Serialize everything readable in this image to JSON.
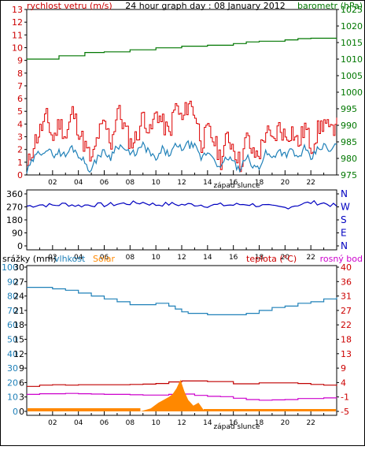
{
  "chart_data": [
    {
      "type": "line",
      "title": "24 hour graph day : 08 January 2012",
      "left_label": "rychlost vetru (m/s)",
      "right_label": "barometr (hPa)",
      "x_ticks": [
        "02",
        "04",
        "06",
        "08",
        "10",
        "12",
        "14",
        "16",
        "18",
        "20",
        "22"
      ],
      "x_annotation": "západ slunce",
      "y_left_ticks": [
        "0",
        "1",
        "2",
        "3",
        "4",
        "5",
        "6",
        "7",
        "8",
        "9",
        "10",
        "11",
        "12",
        "13"
      ],
      "ylim_left": [
        0,
        13
      ],
      "y_right_ticks": [
        "975",
        "980",
        "985",
        "990",
        "995",
        "1000",
        "1005",
        "1010",
        "1015",
        "1020",
        "1025"
      ],
      "ylim_right": [
        975,
        1025
      ],
      "grid": false,
      "colors": {
        "gust": "#dd0000",
        "wind": "#1f80b8",
        "pressure": "#007700",
        "text_red": "#cc0000",
        "text_green": "#007700"
      },
      "series": [
        {
          "name": "barometr",
          "role": "pressure",
          "x": [
            0,
            2,
            2.5,
            4,
            4.5,
            6,
            8,
            10,
            12,
            14,
            16,
            17,
            18,
            20,
            21,
            22,
            24
          ],
          "values": [
            1010,
            1010,
            1011,
            1011,
            1012,
            1012.2,
            1012.8,
            1013.4,
            1013.9,
            1014.2,
            1014.7,
            1015.2,
            1015.4,
            1015.8,
            1016.2,
            1016.3,
            1016.4
          ]
        },
        {
          "name": "náraz",
          "role": "gust",
          "x": [
            0,
            0.5,
            1,
            1.5,
            2,
            2.5,
            3,
            3.5,
            4,
            4.5,
            5,
            5.5,
            6,
            6.5,
            7,
            7.5,
            8,
            8.5,
            9,
            9.5,
            10,
            10.5,
            11,
            11.5,
            12,
            12.5,
            13,
            13.5,
            14,
            14.5,
            15,
            15.5,
            16,
            16.5,
            17,
            17.5,
            18,
            18.5,
            19,
            19.5,
            20,
            20.5,
            21,
            21.5,
            22,
            22.5,
            23,
            23.5,
            24
          ],
          "values": [
            0.5,
            2.5,
            3.5,
            4.5,
            2.8,
            4.2,
            3.0,
            5.0,
            3.5,
            2.2,
            1.0,
            3.2,
            4.0,
            2.5,
            5.2,
            3.8,
            2.5,
            3.0,
            4.8,
            3.2,
            5.0,
            4.0,
            3.2,
            5.5,
            4.2,
            5.8,
            4.8,
            2.5,
            3.5,
            2.6,
            1.2,
            3.0,
            2.2,
            0.8,
            3.0,
            1.5,
            1.8,
            3.5,
            2.5,
            3.8,
            3.0,
            3.5,
            2.4,
            3.8,
            2.2,
            3.5,
            4.2,
            3.2,
            4.5
          ]
        },
        {
          "name": "vítr",
          "role": "wind",
          "x": [
            0,
            0.5,
            1,
            1.5,
            2,
            2.5,
            3,
            3.5,
            4,
            4.5,
            5,
            5.5,
            6,
            6.5,
            7,
            7.5,
            8,
            8.5,
            9,
            9.5,
            10,
            10.5,
            11,
            11.5,
            12,
            12.5,
            13,
            13.5,
            14,
            14.5,
            15,
            15.5,
            16,
            16.5,
            17,
            17.5,
            18,
            18.5,
            19,
            19.5,
            20,
            20.5,
            21,
            21.5,
            22,
            22.5,
            23,
            23.5,
            24
          ],
          "values": [
            0.2,
            1.2,
            1.8,
            2.0,
            1.6,
            1.8,
            1.5,
            2.2,
            1.6,
            1.0,
            0.3,
            1.5,
            1.8,
            1.4,
            2.4,
            2.1,
            1.6,
            1.8,
            2.3,
            1.8,
            1.1,
            2.0,
            1.6,
            2.2,
            2.1,
            2.4,
            2.2,
            1.3,
            1.8,
            1.4,
            0.4,
            1.4,
            1.1,
            0.2,
            1.5,
            0.6,
            0.6,
            1.8,
            1.3,
            2.0,
            1.6,
            1.9,
            1.3,
            2.1,
            1.2,
            2.0,
            2.3,
            1.8,
            2.4
          ]
        }
      ]
    },
    {
      "type": "line",
      "title": "",
      "y_left_ticks": [
        "360",
        "270",
        "180",
        "90",
        "0"
      ],
      "ylim_left": [
        0,
        360
      ],
      "y_right_ticks": [
        "N",
        "W",
        "S",
        "E",
        "N"
      ],
      "x_ticks": [
        "02",
        "04",
        "06",
        "08",
        "10",
        "12",
        "14",
        "16",
        "18",
        "20",
        "22"
      ],
      "grid": false,
      "colors": {
        "direction": "#0000c0",
        "text": "#0000c0"
      },
      "series": [
        {
          "name": "směr větru",
          "x": [
            0,
            1,
            2,
            3,
            4,
            5,
            6,
            7,
            8,
            9,
            10,
            11,
            12,
            13,
            14,
            15,
            16,
            17,
            18,
            19,
            20,
            21,
            22,
            23,
            24
          ],
          "values": [
            275,
            285,
            280,
            290,
            278,
            285,
            283,
            290,
            295,
            300,
            285,
            290,
            285,
            287,
            280,
            283,
            283,
            290,
            280,
            270,
            265,
            285,
            300,
            295,
            275
          ]
        }
      ]
    },
    {
      "type": "line",
      "title": "",
      "labels_top": {
        "rain": "srážky (mm)",
        "humidity": "vlhkost",
        "solar": "Solar",
        "temp": "teplota (°C)",
        "dew": "rosný bod"
      },
      "x_ticks": [
        "02",
        "04",
        "06",
        "08",
        "10",
        "12",
        "14",
        "16",
        "18",
        "20",
        "22"
      ],
      "x_annotation": "západ slunce",
      "y_left_rain_ticks": [
        "30",
        "27",
        "24",
        "21",
        "18",
        "15",
        "12",
        "9",
        "6",
        "3",
        "0"
      ],
      "y_left_hum_ticks": [
        "100",
        "90",
        "80",
        "70",
        "60",
        "50",
        "40",
        "30",
        "20",
        "10",
        "0"
      ],
      "y_right_ticks": [
        "40",
        "36",
        "31",
        "27",
        "22",
        "18",
        "13",
        "9",
        "4",
        "-1",
        "-5"
      ],
      "ylim_left": [
        0,
        100
      ],
      "ylim_right": [
        -5,
        40
      ],
      "grid": false,
      "colors": {
        "humidity": "#1f80b8",
        "temp": "#c00000",
        "dew": "#cc00cc",
        "solar": "#ff8800",
        "rain_text": "#000000",
        "temp_text": "#cc0000"
      },
      "series": [
        {
          "name": "vlhkost",
          "role": "humidity",
          "x": [
            0,
            1,
            2,
            3,
            4,
            5,
            6,
            7,
            8,
            9,
            10,
            11,
            11.5,
            12,
            12.5,
            13,
            14,
            15,
            16,
            17,
            18,
            19,
            20,
            21,
            22,
            23,
            24
          ],
          "values": [
            86,
            86,
            85,
            84,
            82,
            80,
            78,
            76,
            74,
            74,
            75,
            73,
            71,
            69,
            68,
            68,
            67,
            67,
            67,
            68,
            70,
            72,
            73,
            75,
            76,
            78,
            79
          ]
        },
        {
          "name": "teplota",
          "role": "temp",
          "x": [
            0,
            1,
            2,
            3,
            4,
            5,
            6,
            7,
            8,
            9,
            10,
            11,
            12,
            13,
            14,
            15,
            16,
            17,
            18,
            19,
            20,
            21,
            22,
            23,
            24
          ],
          "values": [
            2.8,
            3.2,
            3.3,
            3.2,
            3.3,
            3.3,
            3.3,
            3.3,
            3.4,
            3.5,
            3.7,
            4.2,
            4.5,
            4.5,
            4.3,
            4.3,
            3.6,
            3.6,
            3.9,
            3.9,
            3.9,
            3.7,
            3.4,
            3.2,
            3.0
          ]
        },
        {
          "name": "rosný bod",
          "role": "dew",
          "x": [
            0,
            1,
            2,
            3,
            4,
            5,
            6,
            7,
            8,
            9,
            10,
            11,
            12,
            13,
            14,
            15,
            16,
            17,
            18,
            19,
            20,
            21,
            22,
            23,
            24
          ],
          "values": [
            0.3,
            0.5,
            0.5,
            0.6,
            0.5,
            0.4,
            0.3,
            0.3,
            0.2,
            0.1,
            0.1,
            0.3,
            0.4,
            0.0,
            -0.3,
            -0.4,
            -0.9,
            -1.3,
            -1.5,
            -1.4,
            -1.3,
            -1.0,
            -1.0,
            -0.8,
            -0.9
          ]
        },
        {
          "name": "Solar",
          "role": "solar",
          "x": [
            0,
            8.8,
            9.6,
            10.2,
            10.6,
            11.0,
            11.3,
            11.6,
            11.9,
            12.2,
            12.5,
            12.9,
            13.3,
            13.7,
            24
          ],
          "values": [
            0,
            0,
            2,
            6,
            8,
            10,
            12,
            16,
            22,
            14,
            8,
            4,
            6,
            1,
            0
          ]
        }
      ]
    }
  ]
}
